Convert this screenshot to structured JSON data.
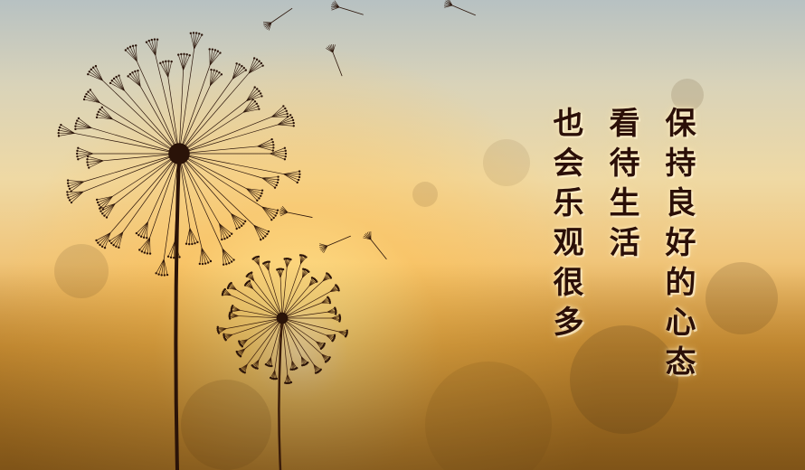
{
  "poem": {
    "columns": [
      "保持良好的心态",
      "看待生活",
      "也会乐观很多"
    ]
  }
}
